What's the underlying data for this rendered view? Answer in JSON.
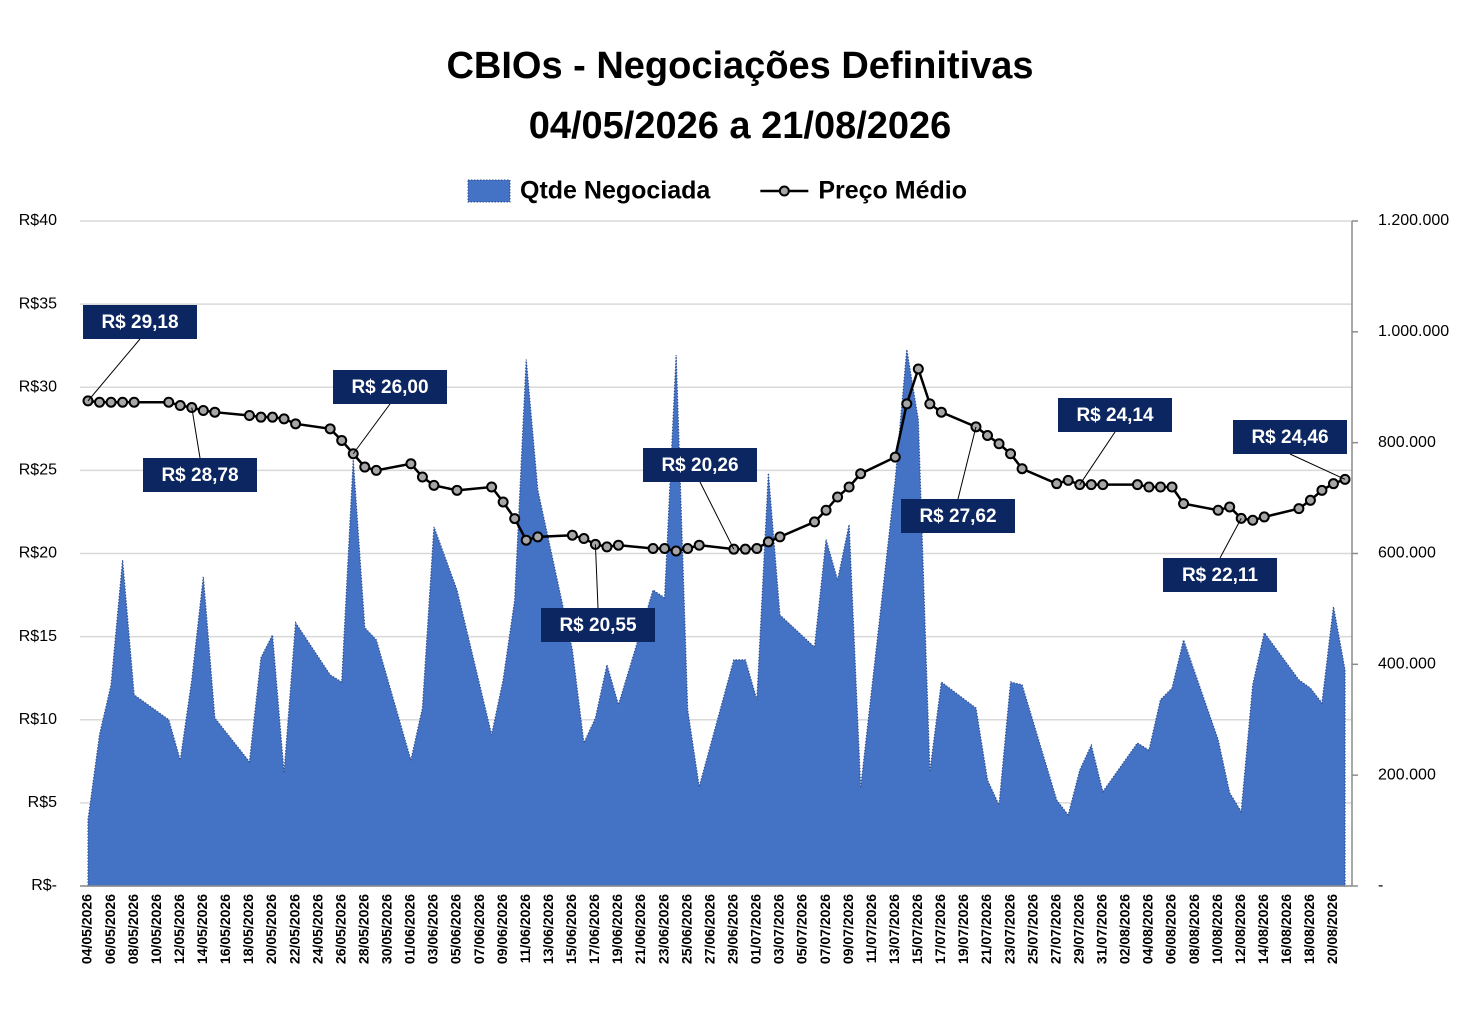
{
  "chart_data": {
    "type": "combo",
    "title": "CBIOs - Negociações Definitivas",
    "subtitle": "04/05/2026 a 21/08/2026",
    "legend": "top",
    "grid": true,
    "x": [
      "04/05/2026",
      "05/05/2026",
      "06/05/2026",
      "07/05/2026",
      "08/05/2026",
      "11/05/2026",
      "12/05/2026",
      "13/05/2026",
      "14/05/2026",
      "15/05/2026",
      "18/05/2026",
      "19/05/2026",
      "20/05/2026",
      "21/05/2026",
      "22/05/2026",
      "25/05/2026",
      "26/05/2026",
      "27/05/2026",
      "28/05/2026",
      "29/05/2026",
      "01/06/2026",
      "02/06/2026",
      "03/06/2026",
      "05/06/2026",
      "08/06/2026",
      "09/06/2026",
      "10/06/2026",
      "11/06/2026",
      "12/06/2026",
      "15/06/2026",
      "16/06/2026",
      "17/06/2026",
      "18/06/2026",
      "19/06/2026",
      "22/06/2026",
      "23/06/2026",
      "24/06/2026",
      "25/06/2026",
      "26/06/2026",
      "29/06/2026",
      "30/06/2026",
      "01/07/2026",
      "02/07/2026",
      "03/07/2026",
      "06/07/2026",
      "07/07/2026",
      "08/07/2026",
      "09/07/2026",
      "10/07/2026",
      "13/07/2026",
      "14/07/2026",
      "15/07/2026",
      "16/07/2026",
      "17/07/2026",
      "20/07/2026",
      "21/07/2026",
      "22/07/2026",
      "23/07/2026",
      "24/07/2026",
      "27/07/2026",
      "28/07/2026",
      "29/07/2026",
      "30/07/2026",
      "31/07/2026",
      "03/08/2026",
      "04/08/2026",
      "05/08/2026",
      "06/08/2026",
      "07/08/2026",
      "10/08/2026",
      "11/08/2026",
      "12/08/2026",
      "13/08/2026",
      "14/08/2026",
      "17/08/2026",
      "18/08/2026",
      "19/08/2026",
      "20/08/2026",
      "21/08/2026"
    ],
    "xticks": [
      "04/05/2026",
      "06/05/2026",
      "08/05/2026",
      "10/05/2026",
      "12/05/2026",
      "14/05/2026",
      "16/05/2026",
      "18/05/2026",
      "20/05/2026",
      "22/05/2026",
      "24/05/2026",
      "26/05/2026",
      "28/05/2026",
      "30/05/2026",
      "01/06/2026",
      "03/06/2026",
      "05/06/2026",
      "07/06/2026",
      "09/06/2026",
      "11/06/2026",
      "13/06/2026",
      "15/06/2026",
      "17/06/2026",
      "19/06/2026",
      "21/06/2026",
      "23/06/2026",
      "25/06/2026",
      "27/06/2026",
      "29/06/2026",
      "01/07/2026",
      "03/07/2026",
      "05/07/2026",
      "07/07/2026",
      "09/07/2026",
      "11/07/2026",
      "13/07/2026",
      "15/07/2026",
      "17/07/2026",
      "19/07/2026",
      "21/07/2026",
      "23/07/2026",
      "25/07/2026",
      "27/07/2026",
      "29/07/2026",
      "31/07/2026",
      "02/08/2026",
      "04/08/2026",
      "06/08/2026",
      "08/08/2026",
      "10/08/2026",
      "12/08/2026",
      "14/08/2026",
      "16/08/2026",
      "18/08/2026",
      "20/08/2026"
    ],
    "ylim": [
      0,
      40
    ],
    "yticks": [
      {
        "value": 0,
        "label": "R$-"
      },
      {
        "value": 5,
        "label": "R$5"
      },
      {
        "value": 10,
        "label": "R$10"
      },
      {
        "value": 15,
        "label": "R$15"
      },
      {
        "value": 20,
        "label": "R$20"
      },
      {
        "value": 25,
        "label": "R$25"
      },
      {
        "value": 30,
        "label": "R$30"
      },
      {
        "value": 35,
        "label": "R$35"
      },
      {
        "value": 40,
        "label": "R$40"
      }
    ],
    "y2lim": [
      0,
      1200000
    ],
    "y2ticks": [
      {
        "value": 0,
        "label": "-"
      },
      {
        "value": 200000,
        "label": "200.000"
      },
      {
        "value": 400000,
        "label": "400.000"
      },
      {
        "value": 600000,
        "label": "600.000"
      },
      {
        "value": 800000,
        "label": "800.000"
      },
      {
        "value": 1000000,
        "label": "1.000.000"
      },
      {
        "value": 1200000,
        "label": "1.200.000"
      }
    ],
    "series": [
      {
        "name": "Qtde Negociada",
        "type": "area",
        "axis": "y2",
        "color": "#4472c4",
        "values": [
          119000,
          273000,
          363000,
          588000,
          345000,
          300000,
          227000,
          372000,
          558000,
          303000,
          224000,
          412000,
          453000,
          204000,
          475000,
          381000,
          368000,
          769000,
          466000,
          444000,
          227000,
          321000,
          648000,
          534000,
          273000,
          372000,
          516000,
          950000,
          715000,
          426000,
          258000,
          303000,
          399000,
          327000,
          534000,
          520000,
          958000,
          318000,
          179000,
          408000,
          408000,
          336000,
          745000,
          489000,
          431000,
          625000,
          552000,
          652000,
          177000,
          733000,
          968000,
          841000,
          206000,
          368000,
          321000,
          191000,
          146000,
          368000,
          363000,
          155000,
          128000,
          209000,
          254000,
          170000,
          258000,
          245000,
          336000,
          357000,
          444000,
          264000,
          168000,
          134000,
          363000,
          457000,
          372000,
          357000,
          330000,
          504000,
          390000
        ]
      },
      {
        "name": "Preço Médio",
        "type": "line",
        "color": "#000000",
        "marker_color": "#a6a6a6",
        "values": [
          29.18,
          29.1,
          29.1,
          29.1,
          29.1,
          29.1,
          28.9,
          28.78,
          28.6,
          28.5,
          28.3,
          28.2,
          28.2,
          28.1,
          27.8,
          27.5,
          26.8,
          26.0,
          25.2,
          25.0,
          25.4,
          24.6,
          24.1,
          23.8,
          24.0,
          23.1,
          22.1,
          20.8,
          21.0,
          21.1,
          20.9,
          20.55,
          20.4,
          20.5,
          20.3,
          20.3,
          20.15,
          20.3,
          20.5,
          20.26,
          20.26,
          20.3,
          20.7,
          21.0,
          21.9,
          22.6,
          23.4,
          24.0,
          24.8,
          25.8,
          29.0,
          31.1,
          29.0,
          28.5,
          27.62,
          27.1,
          26.6,
          26.0,
          25.1,
          24.2,
          24.4,
          24.14,
          24.14,
          24.14,
          24.14,
          24.0,
          24.0,
          24.0,
          23.0,
          22.6,
          22.8,
          22.11,
          22.0,
          22.2,
          22.7,
          23.2,
          23.8,
          24.2,
          24.46
        ]
      }
    ],
    "annotations": [
      {
        "x": "04/05/2026",
        "value": 29.18,
        "label": "R$ 29,18"
      },
      {
        "x": "13/05/2026",
        "value": 28.78,
        "label": "R$ 28,78"
      },
      {
        "x": "27/05/2026",
        "value": 26.0,
        "label": "R$ 26,00"
      },
      {
        "x": "17/06/2026",
        "value": 20.55,
        "label": "R$ 20,55"
      },
      {
        "x": "29/06/2026",
        "value": 20.26,
        "label": "R$ 20,26"
      },
      {
        "x": "20/07/2026",
        "value": 27.62,
        "label": "R$ 27,62"
      },
      {
        "x": "29/07/2026",
        "value": 24.14,
        "label": "R$ 24,14"
      },
      {
        "x": "12/08/2026",
        "value": 22.11,
        "label": "R$ 22,11"
      },
      {
        "x": "21/08/2026",
        "value": 24.46,
        "label": "R$ 24,46"
      }
    ]
  }
}
